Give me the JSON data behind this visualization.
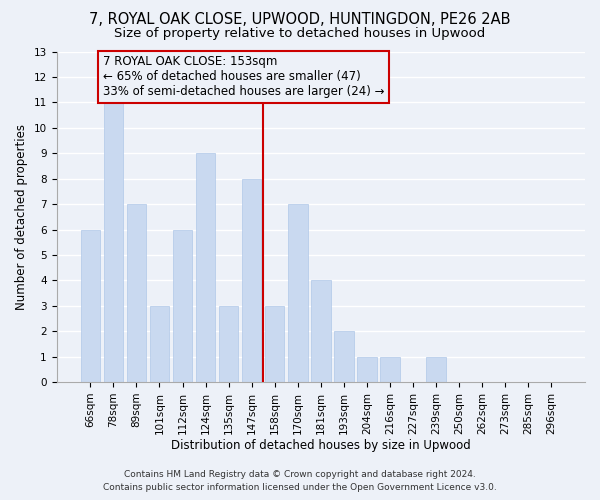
{
  "title": "7, ROYAL OAK CLOSE, UPWOOD, HUNTINGDON, PE26 2AB",
  "subtitle": "Size of property relative to detached houses in Upwood",
  "xlabel": "Distribution of detached houses by size in Upwood",
  "ylabel": "Number of detached properties",
  "bar_labels": [
    "66sqm",
    "78sqm",
    "89sqm",
    "101sqm",
    "112sqm",
    "124sqm",
    "135sqm",
    "147sqm",
    "158sqm",
    "170sqm",
    "181sqm",
    "193sqm",
    "204sqm",
    "216sqm",
    "227sqm",
    "239sqm",
    "250sqm",
    "262sqm",
    "273sqm",
    "285sqm",
    "296sqm"
  ],
  "bar_values": [
    6,
    11,
    7,
    3,
    6,
    9,
    3,
    8,
    3,
    7,
    4,
    2,
    1,
    1,
    0,
    1,
    0,
    0,
    0,
    0,
    0
  ],
  "bar_color": "#c9d9f0",
  "bar_edgecolor": "#b0c8e8",
  "vline_x": 7.5,
  "vline_color": "#cc0000",
  "ylim": [
    0,
    13
  ],
  "yticks": [
    0,
    1,
    2,
    3,
    4,
    5,
    6,
    7,
    8,
    9,
    10,
    11,
    12,
    13
  ],
  "annotation_text": "7 ROYAL OAK CLOSE: 153sqm\n← 65% of detached houses are smaller (47)\n33% of semi-detached houses are larger (24) →",
  "annotation_box_edgecolor": "#cc0000",
  "footer_line1": "Contains HM Land Registry data © Crown copyright and database right 2024.",
  "footer_line2": "Contains public sector information licensed under the Open Government Licence v3.0.",
  "background_color": "#edf1f8",
  "grid_color": "#ffffff",
  "title_fontsize": 10.5,
  "subtitle_fontsize": 9.5,
  "tick_fontsize": 7.5,
  "ylabel_fontsize": 8.5,
  "xlabel_fontsize": 8.5,
  "annotation_fontsize": 8.5,
  "footer_fontsize": 6.5
}
